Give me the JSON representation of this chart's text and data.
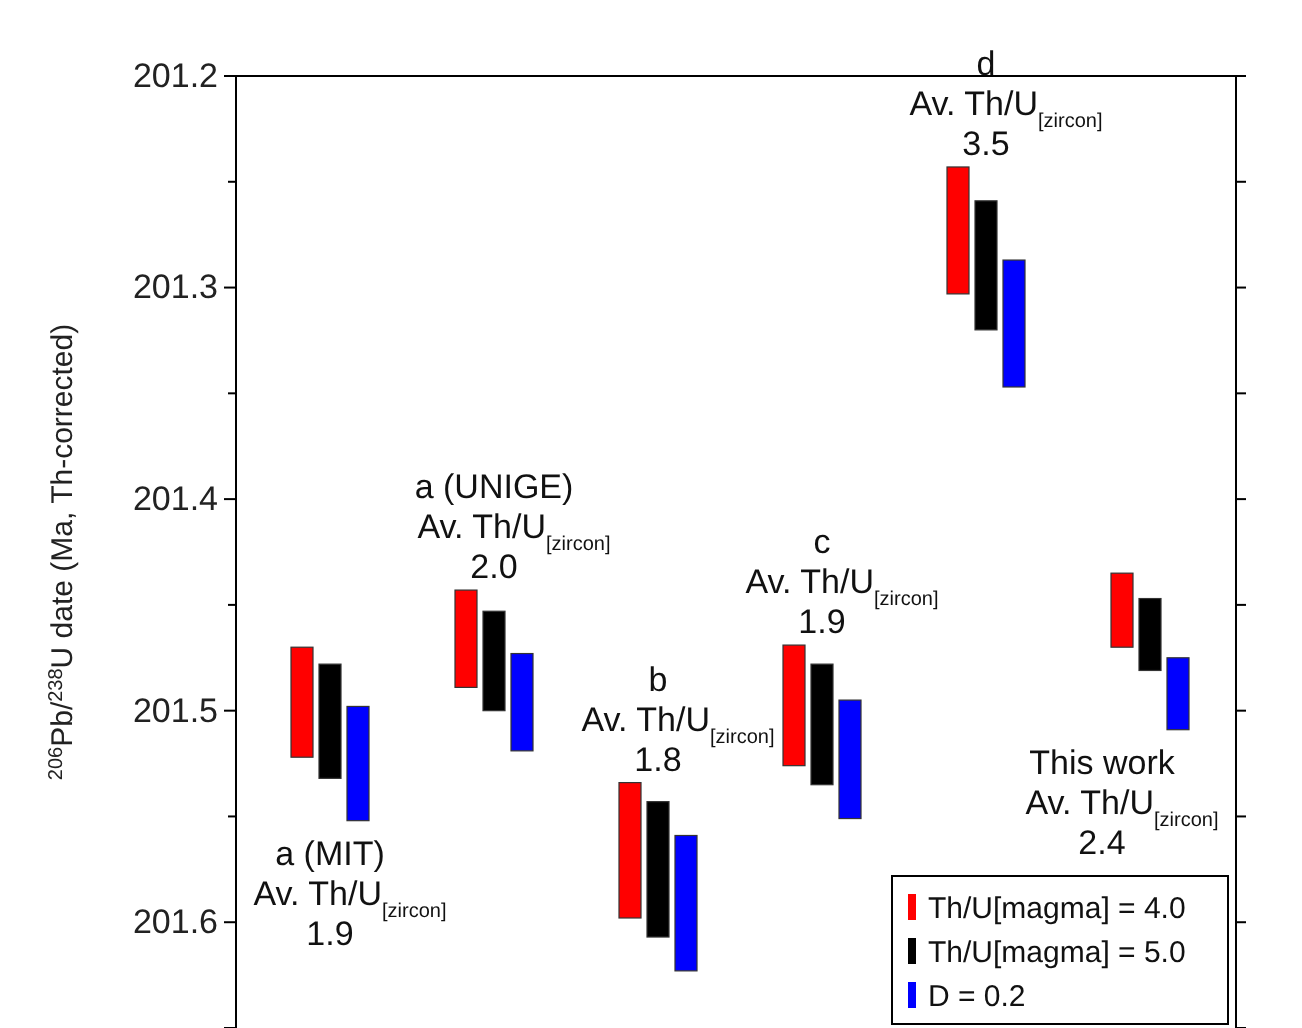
{
  "chart_data": {
    "type": "bar",
    "ylabel": "$^{206}$Pb/$^{238}$U date (Ma, Th-corrected)",
    "categories": [
      null,
      null,
      null,
      null,
      null,
      null
    ],
    "ylim": [
      201.65,
      201.2
    ],
    "yticks": [
      201.2,
      {
        "value": 201.25,
        "label": null
      },
      201.3,
      {
        "value": 201.35,
        "label": null
      },
      201.4,
      {
        "value": 201.45,
        "label": null
      },
      201.5,
      {
        "value": 201.55,
        "label": null
      },
      201.6
    ],
    "series": [
      {
        "name": "Th/U[magma] = 4.0",
        "color": "#ff0000",
        "base": [
          201.47,
          201.443,
          201.534,
          201.469,
          201.243,
          201.435
        ],
        "values": [
          0.052,
          0.046,
          0.064,
          0.057,
          0.06,
          0.035
        ]
      },
      {
        "name": "Th/U[magma] = 5.0",
        "color": "#000000",
        "base": [
          201.478,
          201.453,
          201.543,
          201.478,
          201.259,
          201.447
        ],
        "values": [
          0.054,
          0.047,
          0.064,
          0.057,
          0.061,
          0.034
        ]
      },
      {
        "name": "D = 0.2",
        "color": "#0000ff",
        "base": [
          201.498,
          201.473,
          201.559,
          201.495,
          201.287,
          201.475
        ],
        "values": [
          0.054,
          0.046,
          0.064,
          0.056,
          0.06,
          0.034
        ]
      }
    ],
    "annotations": [
      "a (MIT)\nAv. Th/U$_{[zircon]}$\n1.9",
      "a (UNIGE)\nAv. Th/U$_{[zircon]}$\n2.0",
      "b\nAv. Th/U$_{[zircon]}$\n1.8",
      "c\nAv. Th/U$_{[zircon]}$\n1.9",
      "d\nAv. Th/U$_{[zircon]}$\n3.5",
      "This work\nAv. Th/U$_{[zircon]}$\n2.4"
    ],
    "legend": "bottom right"
  }
}
